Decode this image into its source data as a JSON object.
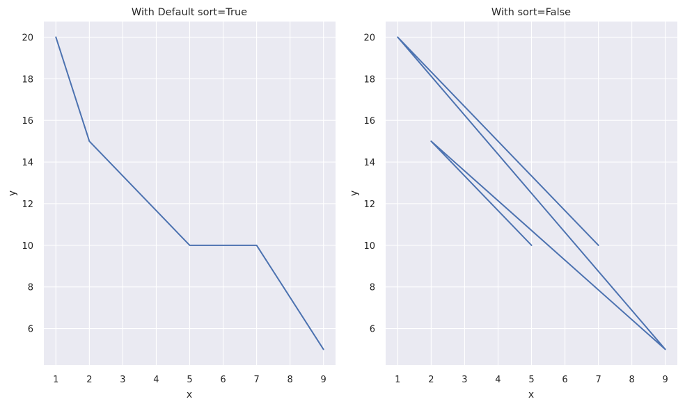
{
  "colors": {
    "background": "#eaeaf2",
    "grid": "#ffffff",
    "series": "#4c72b0",
    "text": "#262626"
  },
  "chart_data": [
    {
      "type": "line",
      "title": "With Default sort=True",
      "xlabel": "x",
      "ylabel": "y",
      "x": [
        1,
        2,
        5,
        7,
        9
      ],
      "y": [
        20,
        15,
        10,
        10,
        5
      ],
      "xticks": [
        1,
        2,
        3,
        4,
        5,
        6,
        7,
        8,
        9
      ],
      "yticks": [
        6,
        8,
        10,
        12,
        14,
        16,
        18,
        20
      ],
      "xlim": [
        0.64,
        9.36
      ],
      "ylim": [
        4.25,
        20.75
      ],
      "grid": true,
      "legend": false
    },
    {
      "type": "line",
      "title": "With sort=False",
      "xlabel": "x",
      "ylabel": "y",
      "x": [
        7,
        1,
        9,
        2,
        5
      ],
      "y": [
        10,
        20,
        5,
        15,
        10
      ],
      "xticks": [
        1,
        2,
        3,
        4,
        5,
        6,
        7,
        8,
        9
      ],
      "yticks": [
        6,
        8,
        10,
        12,
        14,
        16,
        18,
        20
      ],
      "xlim": [
        0.64,
        9.36
      ],
      "ylim": [
        4.25,
        20.75
      ],
      "grid": true,
      "legend": false
    }
  ]
}
